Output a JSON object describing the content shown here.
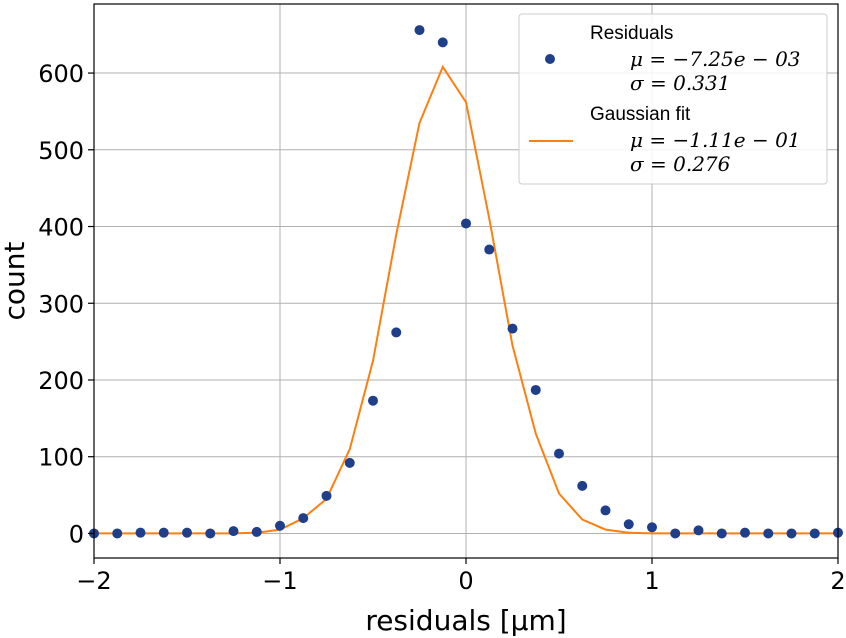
{
  "chart_data": {
    "type": "scatter",
    "xlabel": "residuals [μm]",
    "ylabel": "count",
    "xlim": [
      -2,
      2
    ],
    "ylim": [
      -32,
      690
    ],
    "xticks": [
      -2,
      -1,
      0,
      1,
      2
    ],
    "xtick_labels": [
      "−2",
      "−1",
      "0",
      "1",
      "2"
    ],
    "yticks": [
      0,
      100,
      200,
      300,
      400,
      500,
      600
    ],
    "ytick_labels": [
      "0",
      "100",
      "200",
      "300",
      "400",
      "500",
      "600"
    ],
    "grid": true,
    "legend_position": "top-right",
    "colors": {
      "residuals": "#1f3f8a",
      "fit": "#ff7f0e",
      "grid": "#b0b0b0"
    },
    "series": [
      {
        "name": "Residuals",
        "kind": "scatter",
        "stat_mu": "μ = −7.25e − 03",
        "stat_sigma": "σ = 0.331",
        "x": [
          -2.0,
          -1.875,
          -1.75,
          -1.625,
          -1.5,
          -1.375,
          -1.25,
          -1.125,
          -1.0,
          -0.875,
          -0.75,
          -0.625,
          -0.5,
          -0.375,
          -0.25,
          -0.125,
          0.0,
          0.125,
          0.25,
          0.375,
          0.5,
          0.625,
          0.75,
          0.875,
          1.0,
          1.125,
          1.25,
          1.375,
          1.5,
          1.625,
          1.75,
          1.875,
          2.0
        ],
        "y": [
          0,
          0,
          1,
          1,
          1,
          0,
          3,
          2,
          10,
          20,
          49,
          92,
          173,
          262,
          656,
          640,
          404,
          370,
          267,
          187,
          104,
          62,
          30,
          12,
          8,
          0,
          4,
          0,
          1,
          0,
          0,
          0,
          1
        ]
      },
      {
        "name": "Gaussian fit",
        "kind": "line",
        "stat_mu": "μ = −1.11e − 01",
        "stat_sigma": "σ = 0.276",
        "x": [
          -2.0,
          -1.875,
          -1.75,
          -1.625,
          -1.5,
          -1.375,
          -1.25,
          -1.125,
          -1.0,
          -0.875,
          -0.75,
          -0.625,
          -0.5,
          -0.375,
          -0.25,
          -0.125,
          0.0,
          0.125,
          0.25,
          0.375,
          0.5,
          0.625,
          0.75,
          0.875,
          1.0,
          1.125,
          1.25,
          1.375,
          1.5,
          1.625,
          1.75,
          1.875,
          2.0
        ],
        "y": [
          0,
          0,
          0,
          0,
          0,
          0,
          0,
          1,
          5,
          20,
          45,
          110,
          225,
          390,
          535,
          608,
          562,
          410,
          245,
          130,
          52,
          18,
          5,
          1,
          0,
          0,
          0,
          0,
          0,
          0,
          0,
          0,
          0
        ]
      }
    ]
  }
}
